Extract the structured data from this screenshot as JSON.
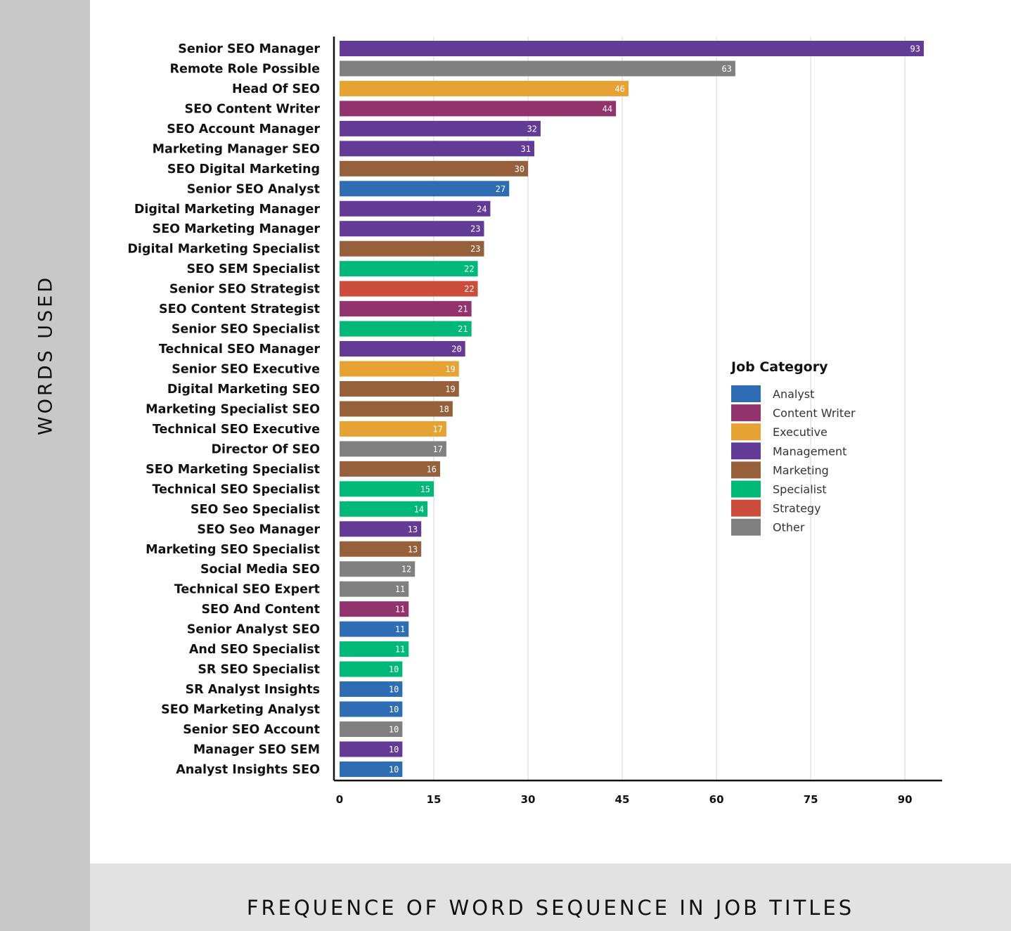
{
  "ylabel": "WORDS USED",
  "footer_title": "FREQUENCE OF WORD SEQUENCE IN JOB TITLES",
  "legend": {
    "title": "Job Category",
    "items": [
      {
        "label": "Analyst",
        "color": "#2e6db4"
      },
      {
        "label": "Content Writer",
        "color": "#93336e"
      },
      {
        "label": "Executive",
        "color": "#e6a232"
      },
      {
        "label": "Management",
        "color": "#633a96"
      },
      {
        "label": "Marketing",
        "color": "#95603a"
      },
      {
        "label": "Specialist",
        "color": "#00b877"
      },
      {
        "label": "Strategy",
        "color": "#cc4d3c"
      },
      {
        "label": "Other",
        "color": "#808080"
      }
    ]
  },
  "chart_data": {
    "type": "bar",
    "orientation": "horizontal",
    "title": "FREQUENCE OF WORD SEQUENCE IN JOB TITLES",
    "ylabel": "WORDS USED",
    "xlabel": "",
    "xlim": [
      0,
      95
    ],
    "xticks": [
      0,
      15,
      30,
      45,
      60,
      75,
      90
    ],
    "grid": true,
    "legend_position": "right",
    "categories": [
      "Senior SEO Manager",
      "Remote Role Possible",
      "Head Of SEO",
      "SEO Content Writer",
      "SEO Account Manager",
      "Marketing Manager SEO",
      "SEO Digital Marketing",
      "Senior SEO Analyst",
      "Digital Marketing Manager",
      "SEO Marketing Manager",
      "Digital Marketing Specialist",
      "SEO SEM Specialist",
      "Senior SEO Strategist",
      "SEO Content Strategist",
      "Senior SEO Specialist",
      "Technical SEO Manager",
      "Senior SEO Executive",
      "Digital Marketing SEO",
      "Marketing Specialist SEO",
      "Technical SEO Executive",
      "Director Of SEO",
      "SEO Marketing Specialist",
      "Technical SEO Specialist",
      "SEO Seo Specialist",
      "SEO Seo Manager",
      "Marketing SEO Specialist",
      "Social Media SEO",
      "Technical SEO Expert",
      "SEO And Content",
      "Senior Analyst SEO",
      "And SEO Specialist",
      "SR SEO Specialist",
      "SR Analyst Insights",
      "SEO Marketing Analyst",
      "Senior SEO Account",
      "Manager SEO SEM",
      "Analyst Insights SEO"
    ],
    "values": [
      93,
      63,
      46,
      44,
      32,
      31,
      30,
      27,
      24,
      23,
      23,
      22,
      22,
      21,
      21,
      20,
      19,
      19,
      18,
      17,
      17,
      16,
      15,
      14,
      13,
      13,
      12,
      11,
      11,
      11,
      11,
      10,
      10,
      10,
      10,
      10,
      10
    ],
    "groups": [
      "Management",
      "Other",
      "Executive",
      "Content Writer",
      "Management",
      "Management",
      "Marketing",
      "Analyst",
      "Management",
      "Management",
      "Marketing",
      "Specialist",
      "Strategy",
      "Content Writer",
      "Specialist",
      "Management",
      "Executive",
      "Marketing",
      "Marketing",
      "Executive",
      "Other",
      "Marketing",
      "Specialist",
      "Specialist",
      "Management",
      "Marketing",
      "Other",
      "Other",
      "Content Writer",
      "Analyst",
      "Specialist",
      "Specialist",
      "Analyst",
      "Analyst",
      "Other",
      "Management",
      "Analyst"
    ]
  }
}
